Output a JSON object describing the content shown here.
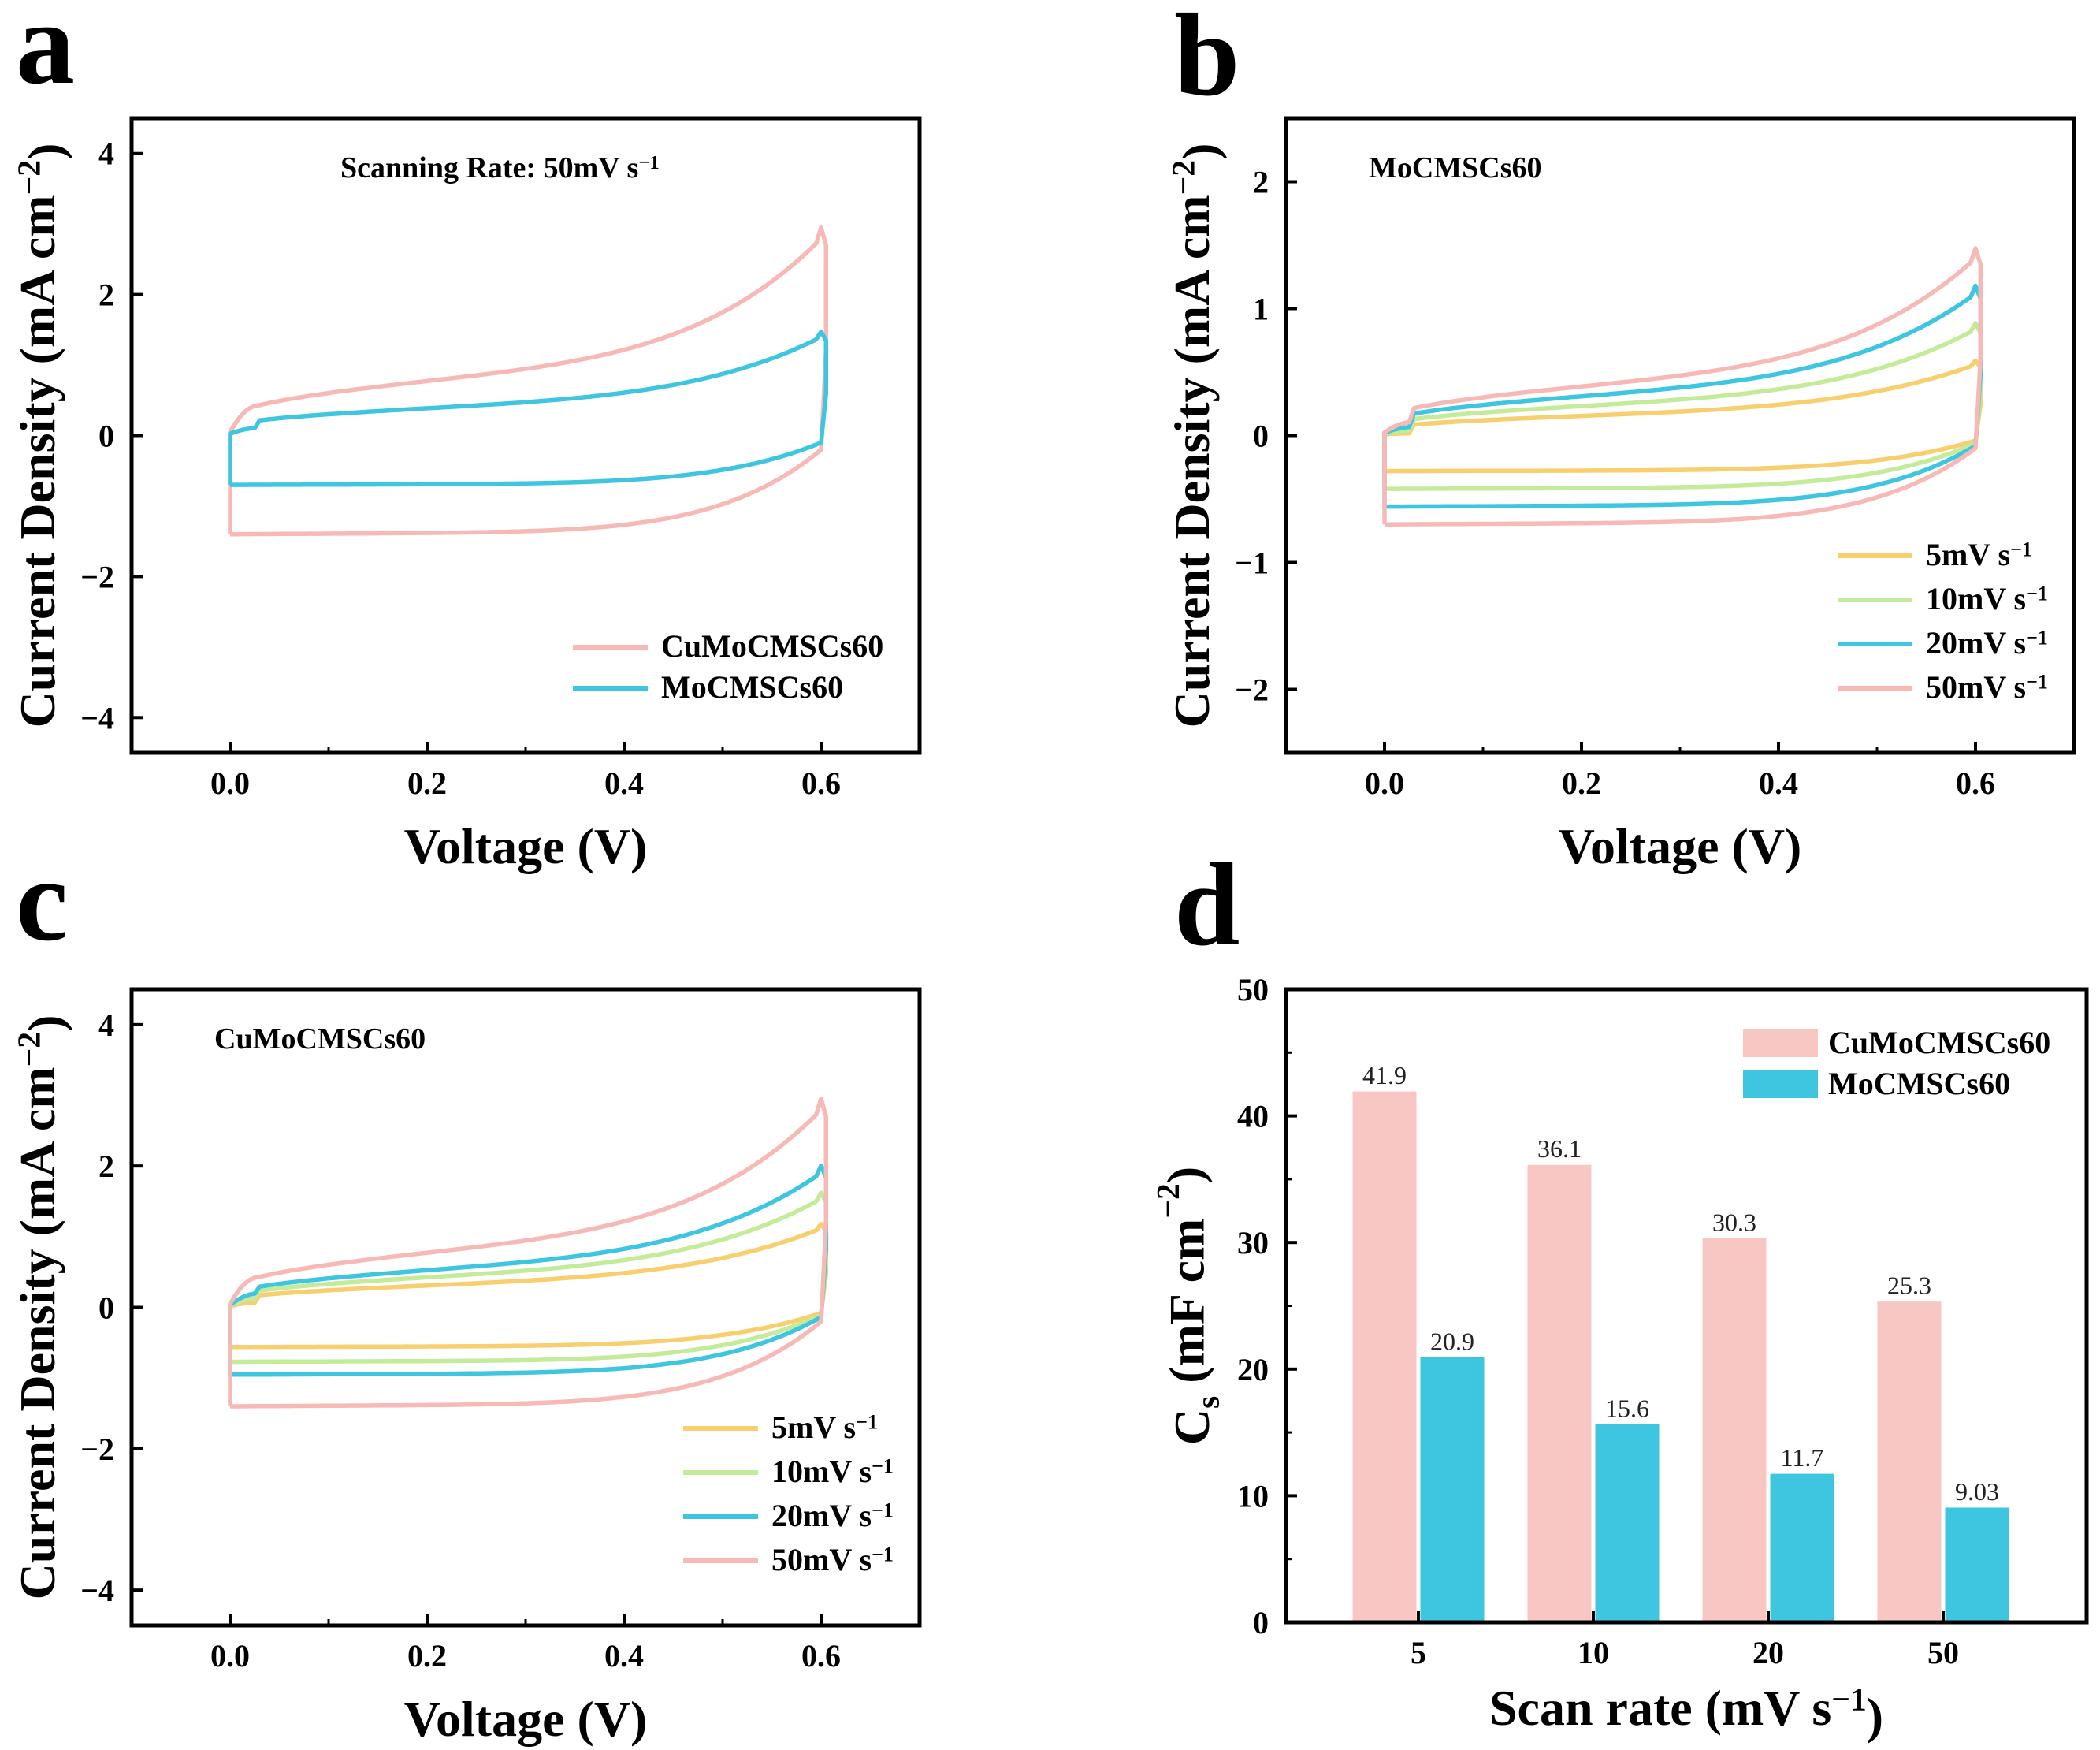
{
  "colors": {
    "pink": "#f8c6c3",
    "pink_line": "#f7b9b5",
    "blue": "#3ec6e0",
    "green": "#c4eb9a",
    "yellow": "#f7cf6e"
  },
  "panel_labels": [
    "a",
    "b",
    "c",
    "d"
  ],
  "chart_data": [
    {
      "type": "line",
      "panel": "a",
      "xlabel": "Voltage (V)",
      "ylabel": "Current Density (mA cm−2)",
      "xlim": [
        -0.1,
        0.7
      ],
      "ylim": [
        -4.5,
        4.5
      ],
      "xticks": [
        "0.0",
        "0.2",
        "0.4",
        "0.6"
      ],
      "yticks": [
        "4",
        "2",
        "0",
        "−2",
        "−4"
      ],
      "annotation": "Scanning Rate: 50mV s−1",
      "legend": {
        "placement": "bottom-right"
      },
      "series": [
        {
          "name": "CuMoCMSCs60",
          "scale": 1.0,
          "color": "#f7b9b5"
        },
        {
          "name": "MoCMSCs60",
          "scale": 0.5,
          "color": "#3ec6e0"
        }
      ]
    },
    {
      "type": "line",
      "panel": "b",
      "xlabel": "Voltage (V)",
      "ylabel": "Current Density (mA cm−2)",
      "xlim": [
        -0.1,
        0.7
      ],
      "ylim": [
        -2.5,
        2.5
      ],
      "xticks": [
        "0.0",
        "0.2",
        "0.4",
        "0.6"
      ],
      "yticks": [
        "2",
        "1",
        "0",
        "−1",
        "−2"
      ],
      "annotation": "MoCMSCs60",
      "legend": {
        "placement": "bottom-right"
      },
      "series": [
        {
          "name": "5mV s−1",
          "scale": 0.2,
          "color": "#f7cf6e"
        },
        {
          "name": "10mV s−1",
          "scale": 0.3,
          "color": "#c4eb9a"
        },
        {
          "name": "20mV s−1",
          "scale": 0.4,
          "color": "#3ec6e0"
        },
        {
          "name": "50mV s−1",
          "scale": 0.5,
          "color": "#f7b9b5"
        }
      ]
    },
    {
      "type": "line",
      "panel": "c",
      "xlabel": "Voltage (V)",
      "ylabel": "Current Density (mA cm−2)",
      "xlim": [
        -0.1,
        0.7
      ],
      "ylim": [
        -4.5,
        4.5
      ],
      "xticks": [
        "0.0",
        "0.2",
        "0.4",
        "0.6"
      ],
      "yticks": [
        "4",
        "2",
        "0",
        "−2",
        "−4"
      ],
      "annotation": "CuMoCMSCs60",
      "legend": {
        "placement": "bottom-right"
      },
      "series": [
        {
          "name": "5mV s−1",
          "scale": 0.4,
          "color": "#f7cf6e"
        },
        {
          "name": "10mV s−1",
          "scale": 0.55,
          "color": "#c4eb9a"
        },
        {
          "name": "20mV s−1",
          "scale": 0.68,
          "color": "#3ec6e0"
        },
        {
          "name": "50mV s−1",
          "scale": 1.0,
          "color": "#f7b9b5"
        }
      ]
    },
    {
      "type": "bar",
      "panel": "d",
      "xlabel": "Scan rate (mV s−1)",
      "ylabel": "Cs (mF cm−2)",
      "ylim": [
        0,
        50
      ],
      "yticks": [
        "50",
        "40",
        "30",
        "20",
        "10",
        "0"
      ],
      "categories": [
        "5",
        "10",
        "20",
        "50"
      ],
      "legend": {
        "placement": "top-right"
      },
      "series": [
        {
          "name": "CuMoCMSCs60",
          "values": [
            41.9,
            36.1,
            30.3,
            25.3
          ],
          "labels": [
            "41.9",
            "36.1",
            "30.3",
            "25.3"
          ],
          "color": "#f8c6c3"
        },
        {
          "name": "MoCMSCs60",
          "values": [
            20.9,
            15.6,
            11.7,
            9.03
          ],
          "labels": [
            "20.9",
            "15.6",
            "11.7",
            "9.03"
          ],
          "color": "#3ec6e0"
        }
      ]
    }
  ]
}
